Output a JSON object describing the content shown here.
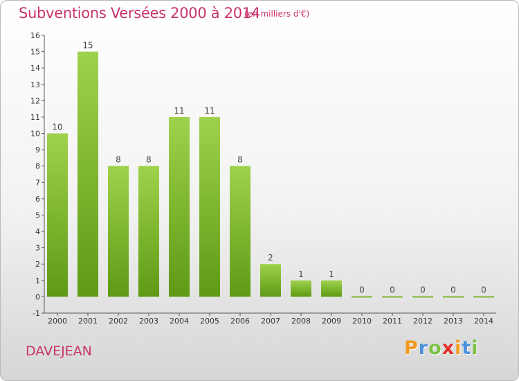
{
  "chart_data": {
    "type": "bar",
    "title": "Subventions Versées 2000 à 2014",
    "subtitle": "(en milliers d'€)",
    "categories": [
      "2000",
      "2001",
      "2002",
      "2003",
      "2004",
      "2005",
      "2006",
      "2007",
      "2008",
      "2009",
      "2010",
      "2011",
      "2012",
      "2013",
      "2014"
    ],
    "values": [
      10,
      15,
      8,
      8,
      11,
      11,
      8,
      2,
      1,
      1,
      0,
      0,
      0,
      0,
      0
    ],
    "ylim": [
      -1,
      16
    ],
    "yticks": [
      -1,
      0,
      1,
      2,
      3,
      4,
      5,
      6,
      7,
      8,
      9,
      10,
      11,
      12,
      13,
      14,
      15,
      16
    ],
    "grid": false,
    "bar_color_top": "#9fd24c",
    "bar_color_bottom": "#5e9a14"
  },
  "commune": "DAVEJEAN",
  "logo": {
    "letters": [
      "P",
      "r",
      "o",
      "x",
      "i",
      "t",
      "i"
    ],
    "colors": [
      "#f29a1f",
      "#4a90d9",
      "#7cc242",
      "#e2312d",
      "#f29a1f",
      "#4a90d9",
      "#7cc242"
    ]
  }
}
